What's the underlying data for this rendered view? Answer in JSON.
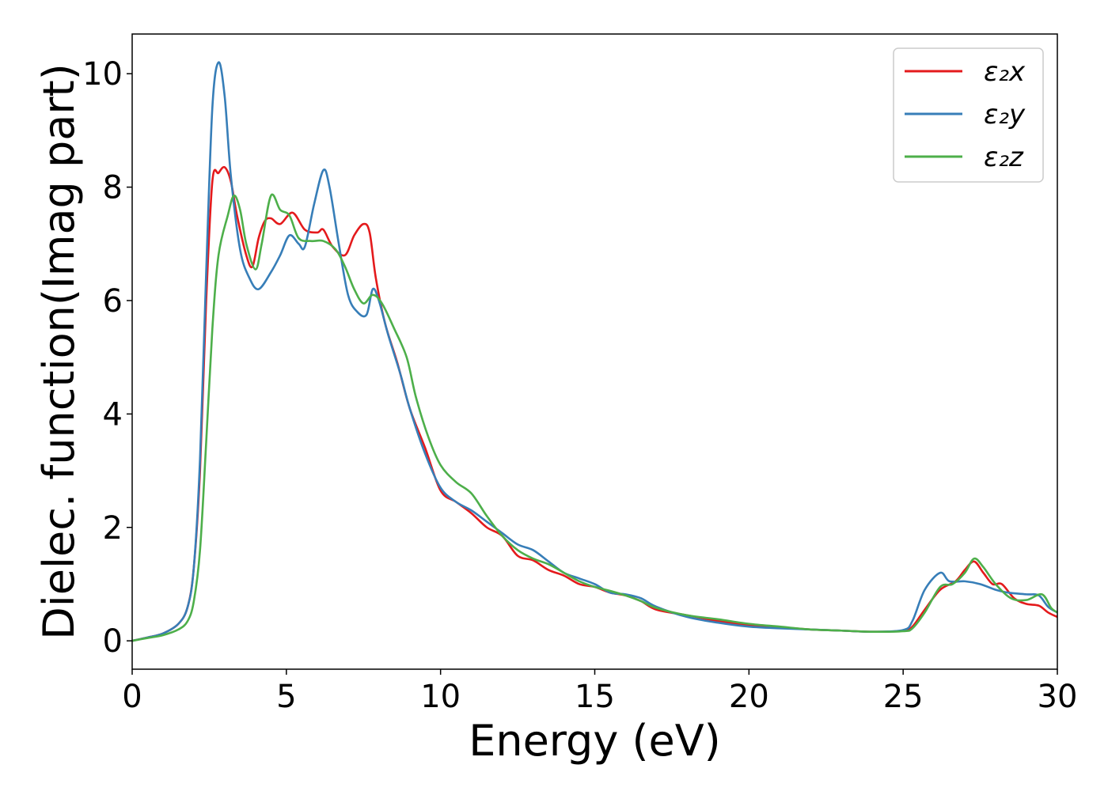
{
  "chart_data": {
    "type": "line",
    "xlabel": "Energy (eV)",
    "ylabel": "Dielec. function(Imag part)",
    "xlim": [
      0,
      30
    ],
    "ylim": [
      -0.5,
      10.7
    ],
    "xticks": [
      0,
      5,
      10,
      15,
      20,
      25,
      30
    ],
    "yticks": [
      0,
      2,
      4,
      6,
      8,
      10
    ],
    "grid": false,
    "legend_position": "top-right",
    "series": [
      {
        "name": "ε₂x",
        "color": "#e41a1c",
        "points": [
          [
            0,
            0
          ],
          [
            0.5,
            0.06
          ],
          [
            1.0,
            0.13
          ],
          [
            1.5,
            0.3
          ],
          [
            1.8,
            0.6
          ],
          [
            2.0,
            1.3
          ],
          [
            2.2,
            3.0
          ],
          [
            2.4,
            6.0
          ],
          [
            2.6,
            8.1
          ],
          [
            2.8,
            8.25
          ],
          [
            3.0,
            8.35
          ],
          [
            3.2,
            8.1
          ],
          [
            3.4,
            7.5
          ],
          [
            3.7,
            6.8
          ],
          [
            3.9,
            6.6
          ],
          [
            4.1,
            7.1
          ],
          [
            4.3,
            7.4
          ],
          [
            4.5,
            7.45
          ],
          [
            4.8,
            7.35
          ],
          [
            5.2,
            7.55
          ],
          [
            5.6,
            7.25
          ],
          [
            6.0,
            7.2
          ],
          [
            6.2,
            7.25
          ],
          [
            6.5,
            6.95
          ],
          [
            6.9,
            6.8
          ],
          [
            7.2,
            7.15
          ],
          [
            7.5,
            7.35
          ],
          [
            7.7,
            7.2
          ],
          [
            7.9,
            6.4
          ],
          [
            8.2,
            5.6
          ],
          [
            8.6,
            4.9
          ],
          [
            9.0,
            4.1
          ],
          [
            9.5,
            3.4
          ],
          [
            10.0,
            2.65
          ],
          [
            10.5,
            2.45
          ],
          [
            11.0,
            2.25
          ],
          [
            11.5,
            2.0
          ],
          [
            12.0,
            1.85
          ],
          [
            12.5,
            1.5
          ],
          [
            13.0,
            1.42
          ],
          [
            13.5,
            1.25
          ],
          [
            14.0,
            1.15
          ],
          [
            14.5,
            1.0
          ],
          [
            15.0,
            0.95
          ],
          [
            15.5,
            0.85
          ],
          [
            16.0,
            0.8
          ],
          [
            16.5,
            0.7
          ],
          [
            17.0,
            0.55
          ],
          [
            18.0,
            0.45
          ],
          [
            19.0,
            0.35
          ],
          [
            20.0,
            0.28
          ],
          [
            21.0,
            0.24
          ],
          [
            22.0,
            0.2
          ],
          [
            23.0,
            0.18
          ],
          [
            24.0,
            0.16
          ],
          [
            25.0,
            0.18
          ],
          [
            25.3,
            0.25
          ],
          [
            25.7,
            0.55
          ],
          [
            26.2,
            0.9
          ],
          [
            26.7,
            1.05
          ],
          [
            27.0,
            1.25
          ],
          [
            27.3,
            1.4
          ],
          [
            27.6,
            1.2
          ],
          [
            27.9,
            1.0
          ],
          [
            28.2,
            1.0
          ],
          [
            28.6,
            0.75
          ],
          [
            29.0,
            0.65
          ],
          [
            29.4,
            0.62
          ],
          [
            29.7,
            0.5
          ],
          [
            30.0,
            0.42
          ]
        ]
      },
      {
        "name": "ε₂y",
        "color": "#377eb8",
        "points": [
          [
            0,
            0
          ],
          [
            0.5,
            0.06
          ],
          [
            1.0,
            0.13
          ],
          [
            1.5,
            0.3
          ],
          [
            1.8,
            0.6
          ],
          [
            2.0,
            1.3
          ],
          [
            2.2,
            3.2
          ],
          [
            2.4,
            6.5
          ],
          [
            2.6,
            9.4
          ],
          [
            2.8,
            10.2
          ],
          [
            3.0,
            9.6
          ],
          [
            3.2,
            8.2
          ],
          [
            3.5,
            6.9
          ],
          [
            3.8,
            6.4
          ],
          [
            4.1,
            6.2
          ],
          [
            4.5,
            6.5
          ],
          [
            4.8,
            6.8
          ],
          [
            5.1,
            7.15
          ],
          [
            5.4,
            7.0
          ],
          [
            5.6,
            6.95
          ],
          [
            5.9,
            7.7
          ],
          [
            6.2,
            8.3
          ],
          [
            6.4,
            8.0
          ],
          [
            6.7,
            7.0
          ],
          [
            7.0,
            6.1
          ],
          [
            7.3,
            5.8
          ],
          [
            7.6,
            5.75
          ],
          [
            7.8,
            6.2
          ],
          [
            8.0,
            6.0
          ],
          [
            8.3,
            5.4
          ],
          [
            8.7,
            4.7
          ],
          [
            9.0,
            4.1
          ],
          [
            9.5,
            3.3
          ],
          [
            10.0,
            2.7
          ],
          [
            10.5,
            2.45
          ],
          [
            11.0,
            2.3
          ],
          [
            11.5,
            2.1
          ],
          [
            12.0,
            1.9
          ],
          [
            12.5,
            1.7
          ],
          [
            13.0,
            1.6
          ],
          [
            13.5,
            1.4
          ],
          [
            14.0,
            1.2
          ],
          [
            14.5,
            1.1
          ],
          [
            15.0,
            1.0
          ],
          [
            15.5,
            0.85
          ],
          [
            16.0,
            0.82
          ],
          [
            16.5,
            0.75
          ],
          [
            17.0,
            0.6
          ],
          [
            18.0,
            0.42
          ],
          [
            19.0,
            0.32
          ],
          [
            20.0,
            0.25
          ],
          [
            21.0,
            0.22
          ],
          [
            22.0,
            0.2
          ],
          [
            23.0,
            0.18
          ],
          [
            24.0,
            0.16
          ],
          [
            25.0,
            0.19
          ],
          [
            25.3,
            0.35
          ],
          [
            25.7,
            0.9
          ],
          [
            26.2,
            1.2
          ],
          [
            26.5,
            1.05
          ],
          [
            27.0,
            1.05
          ],
          [
            27.5,
            1.0
          ],
          [
            28.0,
            0.9
          ],
          [
            28.4,
            0.85
          ],
          [
            29.0,
            0.82
          ],
          [
            29.4,
            0.8
          ],
          [
            29.7,
            0.6
          ],
          [
            30.0,
            0.5
          ]
        ]
      },
      {
        "name": "ε₂z",
        "color": "#4daf4a",
        "points": [
          [
            0,
            0
          ],
          [
            0.5,
            0.05
          ],
          [
            1.0,
            0.1
          ],
          [
            1.5,
            0.2
          ],
          [
            1.8,
            0.35
          ],
          [
            2.0,
            0.7
          ],
          [
            2.2,
            1.6
          ],
          [
            2.4,
            3.5
          ],
          [
            2.6,
            5.5
          ],
          [
            2.8,
            6.8
          ],
          [
            3.1,
            7.5
          ],
          [
            3.3,
            7.85
          ],
          [
            3.5,
            7.6
          ],
          [
            3.7,
            7.0
          ],
          [
            4.0,
            6.55
          ],
          [
            4.2,
            7.0
          ],
          [
            4.5,
            7.85
          ],
          [
            4.8,
            7.6
          ],
          [
            5.1,
            7.5
          ],
          [
            5.4,
            7.1
          ],
          [
            5.8,
            7.05
          ],
          [
            6.2,
            7.05
          ],
          [
            6.6,
            6.9
          ],
          [
            6.9,
            6.6
          ],
          [
            7.2,
            6.2
          ],
          [
            7.5,
            5.95
          ],
          [
            7.8,
            6.1
          ],
          [
            8.1,
            5.95
          ],
          [
            8.5,
            5.5
          ],
          [
            8.9,
            5.0
          ],
          [
            9.2,
            4.3
          ],
          [
            9.6,
            3.6
          ],
          [
            10.0,
            3.1
          ],
          [
            10.5,
            2.8
          ],
          [
            11.0,
            2.6
          ],
          [
            11.5,
            2.2
          ],
          [
            12.0,
            1.85
          ],
          [
            12.5,
            1.6
          ],
          [
            13.0,
            1.45
          ],
          [
            13.5,
            1.35
          ],
          [
            14.0,
            1.2
          ],
          [
            14.5,
            1.05
          ],
          [
            15.0,
            0.95
          ],
          [
            15.5,
            0.88
          ],
          [
            16.0,
            0.8
          ],
          [
            16.5,
            0.7
          ],
          [
            17.0,
            0.58
          ],
          [
            18.0,
            0.45
          ],
          [
            19.0,
            0.38
          ],
          [
            20.0,
            0.3
          ],
          [
            21.0,
            0.25
          ],
          [
            22.0,
            0.2
          ],
          [
            23.0,
            0.18
          ],
          [
            24.0,
            0.16
          ],
          [
            25.0,
            0.17
          ],
          [
            25.3,
            0.22
          ],
          [
            25.7,
            0.5
          ],
          [
            26.2,
            0.95
          ],
          [
            26.6,
            1.0
          ],
          [
            27.0,
            1.2
          ],
          [
            27.3,
            1.45
          ],
          [
            27.6,
            1.3
          ],
          [
            28.0,
            1.0
          ],
          [
            28.5,
            0.75
          ],
          [
            29.0,
            0.72
          ],
          [
            29.5,
            0.82
          ],
          [
            29.8,
            0.58
          ],
          [
            30.0,
            0.5
          ]
        ]
      }
    ]
  }
}
